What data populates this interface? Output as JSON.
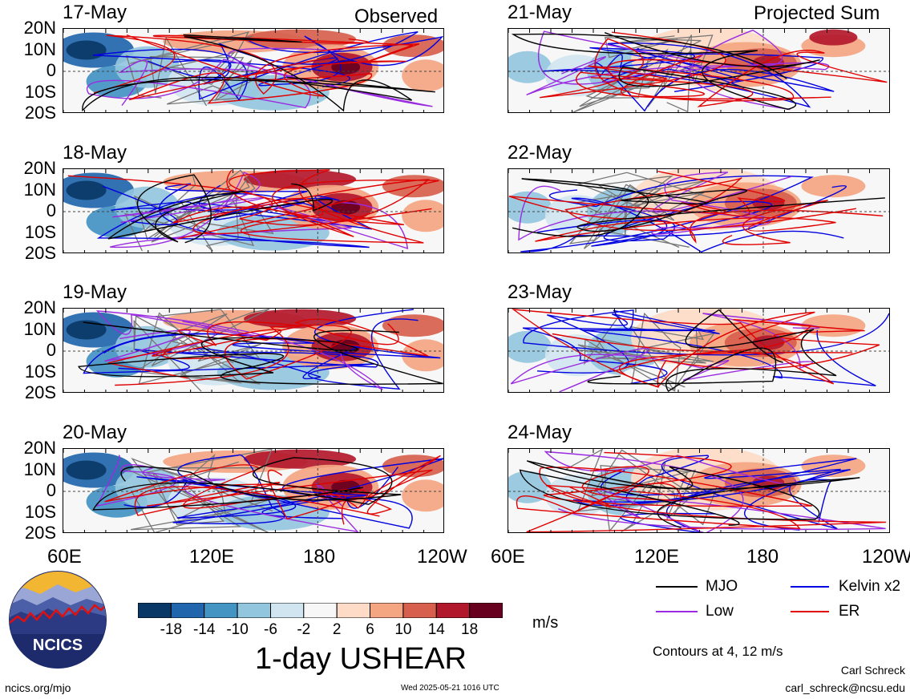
{
  "chart_data": {
    "type": "heatmap",
    "title": "1-day USHEAR",
    "units": "m/s",
    "variable": "USHEAR",
    "xlabel": "",
    "ylabel": "",
    "x_ticks": [
      "60E",
      "120E",
      "180",
      "120W"
    ],
    "y_ticks": [
      "20N",
      "10N",
      "0",
      "10S",
      "20S"
    ],
    "xlim": [
      "60E",
      "120W"
    ],
    "ylim": [
      "20S",
      "20N"
    ],
    "columns": [
      {
        "label": "Observed",
        "panels": [
          "17-May",
          "18-May",
          "19-May",
          "20-May"
        ]
      },
      {
        "label": "Projected Sum",
        "panels": [
          "21-May",
          "22-May",
          "23-May",
          "24-May"
        ]
      }
    ],
    "colorbar": {
      "labels": [
        "-18",
        "-14",
        "-10",
        "-6",
        "-2",
        "2",
        "6",
        "10",
        "14",
        "18"
      ],
      "colors": [
        "#0a3866",
        "#2166ac",
        "#4393c3",
        "#92c5de",
        "#d1e5f0",
        "#f7f7f7",
        "#fddbc7",
        "#f4a582",
        "#d6604d",
        "#b2182b",
        "#67001f"
      ]
    },
    "contours": {
      "note": "Contours at 4, 12 m/s",
      "series": [
        {
          "name": "MJO",
          "color": "#000000"
        },
        {
          "name": "Kelvin x2",
          "color": "#0000e0"
        },
        {
          "name": "Low",
          "color": "#9a2be0"
        },
        {
          "name": "ER",
          "color": "#e00000"
        }
      ]
    }
  },
  "logo": {
    "text": "NCICS"
  },
  "footer": {
    "url": "ncics.org/mjo",
    "timestamp": "Wed 2025-05-21 1016 UTC",
    "author": "Carl Schreck",
    "email": "carl_schreck@ncsu.edu"
  }
}
